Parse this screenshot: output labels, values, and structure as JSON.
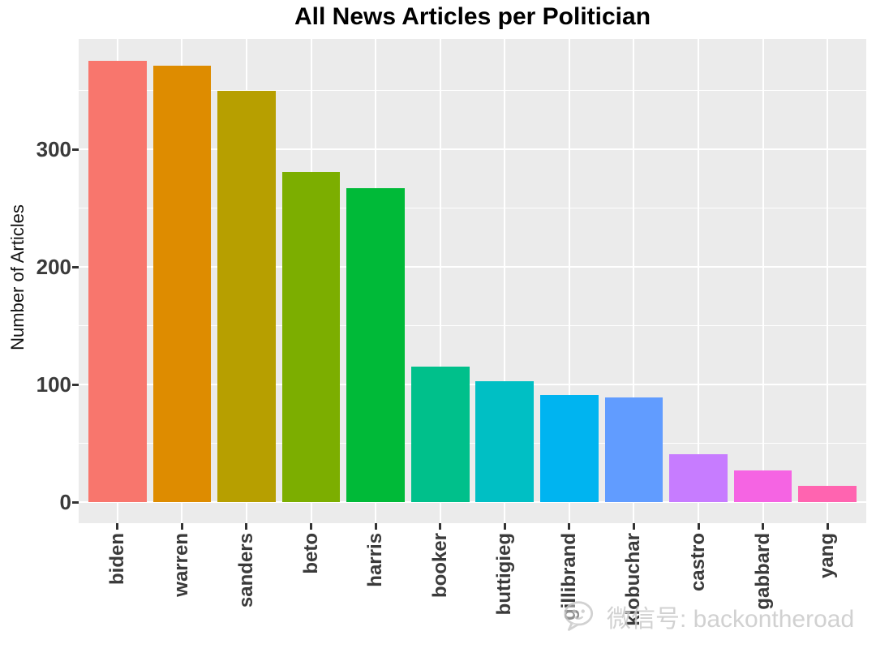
{
  "title": "All News Articles per Politician",
  "y_axis": {
    "label": "Number of Articles",
    "tick_labels": [
      "0",
      "100",
      "200",
      "300"
    ]
  },
  "watermark": {
    "icon": "wechat-icon",
    "text": "微信号: backontheroad"
  },
  "colors": {
    "panel_background": "#EBEBEB",
    "gridline": "#FFFFFF",
    "tick_mark": "#333333",
    "axis_text": "#3A3A3A",
    "title_text": "#000000",
    "watermark_text": "#C9C9C9"
  },
  "chart_data": {
    "type": "bar",
    "title": "All News Articles per Politician",
    "xlabel": "",
    "ylabel": "Number of Articles",
    "categories": [
      "biden",
      "warren",
      "sanders",
      "beto",
      "harris",
      "booker",
      "buttigieg",
      "gillibrand",
      "klobuchar",
      "castro",
      "gabbard",
      "yang"
    ],
    "values": [
      375,
      371,
      350,
      281,
      267,
      115,
      103,
      91,
      89,
      41,
      27,
      14
    ],
    "bar_colors": [
      "#F8766D",
      "#DE8C00",
      "#B79F00",
      "#7CAE00",
      "#00BA38",
      "#00C08B",
      "#00BFC4",
      "#00B4F0",
      "#619CFF",
      "#C77CFF",
      "#F564E3",
      "#FF64B0"
    ],
    "yticks_major": [
      0,
      100,
      200,
      300
    ],
    "yticks_minor": [
      50,
      150,
      250,
      350
    ],
    "ylim": [
      -20,
      394
    ],
    "grid": true,
    "legend": false,
    "bar_width_fraction": 0.9,
    "style": "ggplot-grey-panel"
  }
}
